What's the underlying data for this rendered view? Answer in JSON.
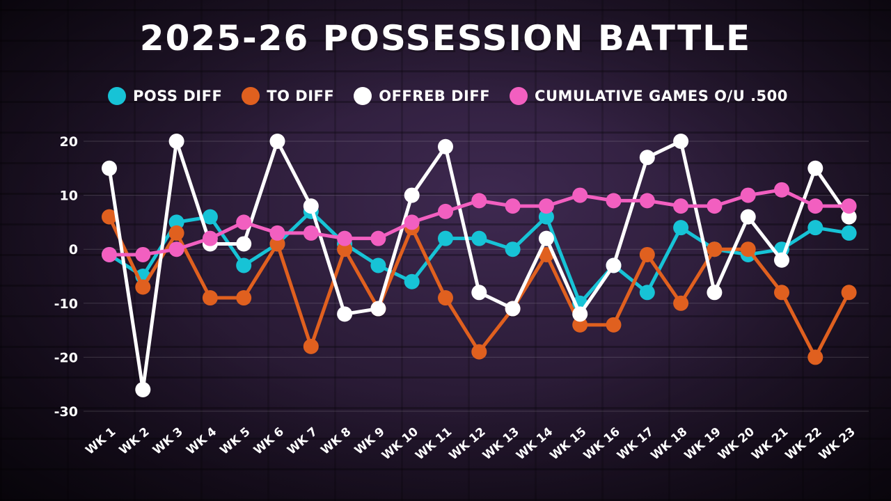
{
  "chart_data": {
    "type": "line",
    "title": "2025-26 POSSESSION BATTLE",
    "categories": [
      "WK 1",
      "WK 2",
      "WK 3",
      "WK 4",
      "WK 5",
      "WK 6",
      "WK 7",
      "WK 8",
      "WK 9",
      "WK 10",
      "WK 11",
      "WK 12",
      "WK 13",
      "WK 14",
      "WK 15",
      "WK 16",
      "WK 17",
      "WK 18",
      "WK 19",
      "WK 20",
      "WK 21",
      "WK 22",
      "WK 23"
    ],
    "ylim": [
      -30,
      20
    ],
    "yticks": [
      20,
      10,
      0,
      -10,
      -20,
      -30
    ],
    "grid": true,
    "legend_position": "top",
    "series": [
      {
        "name": "POSS DIFF",
        "color": "#17c3d6",
        "values": [
          -1,
          -5,
          5,
          6,
          -3,
          1,
          7,
          1,
          -3,
          -6,
          2,
          2,
          0,
          6,
          -10,
          -3,
          -8,
          4,
          0,
          -1,
          0,
          4,
          3
        ]
      },
      {
        "name": "TO DIFF",
        "color": "#e0601f",
        "values": [
          6,
          -7,
          3,
          -9,
          -9,
          1,
          -18,
          0,
          -11,
          4,
          -9,
          -19,
          -11,
          -1,
          -14,
          -14,
          -1,
          -10,
          0,
          0,
          -8,
          -20,
          -8
        ]
      },
      {
        "name": "OFFREB DIFF",
        "color": "#ffffff",
        "values": [
          15,
          -26,
          20,
          1,
          1,
          20,
          8,
          -12,
          -11,
          10,
          19,
          -8,
          -11,
          2,
          -12,
          -3,
          17,
          20,
          -8,
          6,
          -2,
          15,
          6
        ]
      },
      {
        "name": "CUMULATIVE GAMES O/U .500",
        "color": "#f25fc0",
        "values": [
          -1,
          -1,
          0,
          2,
          5,
          3,
          3,
          2,
          2,
          5,
          7,
          9,
          8,
          8,
          10,
          9,
          9,
          8,
          8,
          10,
          11,
          8,
          8
        ]
      }
    ]
  }
}
